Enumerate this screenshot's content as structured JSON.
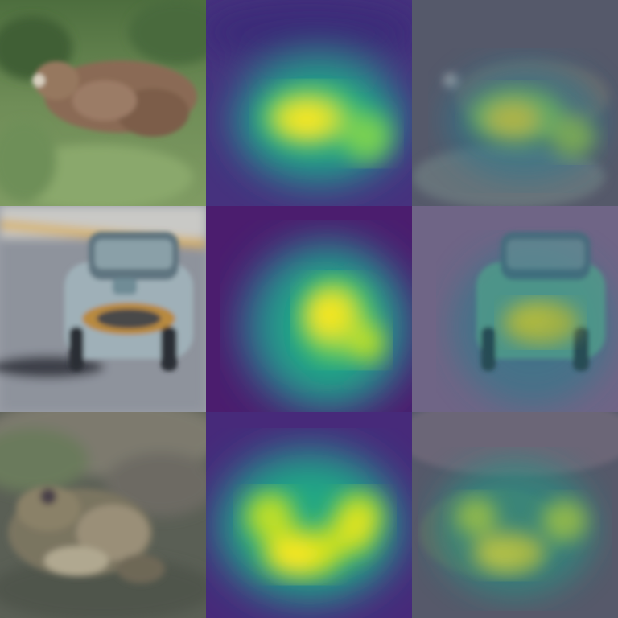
{
  "grid": {
    "rows": 3,
    "columns": [
      "input-image",
      "heatmap",
      "overlay"
    ],
    "row_subjects": [
      "deer",
      "car",
      "frog"
    ]
  },
  "palette": {
    "heatmap_low": "#440154",
    "heatmap_mid_low": "#3b528b",
    "heatmap_mid": "#21918c",
    "heatmap_mid_high": "#5ec962",
    "heatmap_high": "#fde725"
  }
}
